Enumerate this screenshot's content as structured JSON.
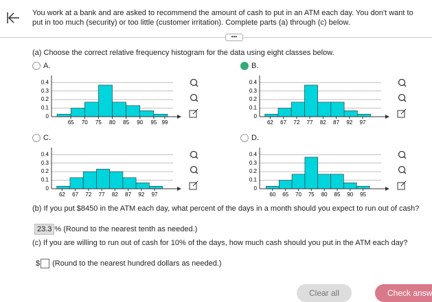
{
  "header": {
    "text": "You work at a bank and are asked to recommend the amount of cash to put in an ATM each day. You don't want to put in too much (security) or too little (customer irritation). Complete parts (a) through (c) below."
  },
  "part_a": {
    "prompt": "(a) Choose the correct relative frequency histogram for the data using eight classes below.",
    "options": [
      {
        "label": "A.",
        "selected": false,
        "chart": {
          "type": "histogram",
          "bins": [
            60,
            65,
            70,
            75,
            80,
            85,
            90,
            95,
            100
          ],
          "values": [
            0.03,
            0.1,
            0.17,
            0.37,
            0.17,
            0.13,
            0.07,
            0.03
          ],
          "xlim": [
            58,
            102
          ],
          "xticks": [
            65,
            70,
            75,
            80,
            85,
            90,
            95,
            99
          ],
          "ylim": [
            0,
            0.45
          ],
          "yticks": [
            0,
            0.1,
            0.2,
            0.3,
            0.4
          ],
          "color": "#00d4dc",
          "grid": true
        }
      },
      {
        "label": "B.",
        "selected": true,
        "chart": {
          "type": "histogram",
          "bins": [
            60,
            65,
            70,
            75,
            80,
            85,
            90,
            95,
            100
          ],
          "values": [
            0.03,
            0.1,
            0.17,
            0.37,
            0.17,
            0.17,
            0.07,
            0.03
          ],
          "xlim": [
            58,
            104
          ],
          "xticks": [
            62,
            67,
            72,
            77,
            82,
            87,
            92,
            97
          ],
          "ylim": [
            0,
            0.45
          ],
          "yticks": [
            0,
            0.1,
            0.2,
            0.3,
            0.4
          ],
          "color": "#00d4dc",
          "grid": true
        }
      },
      {
        "label": "C.",
        "selected": false,
        "chart": {
          "type": "histogram",
          "bins": [
            60,
            65,
            70,
            75,
            80,
            85,
            90,
            95,
            100
          ],
          "values": [
            0.03,
            0.13,
            0.2,
            0.23,
            0.2,
            0.13,
            0.07,
            0.03
          ],
          "xlim": [
            58,
            104
          ],
          "xticks": [
            62,
            67,
            72,
            77,
            82,
            87,
            92,
            97
          ],
          "ylim": [
            0,
            0.45
          ],
          "yticks": [
            0,
            0.1,
            0.2,
            0.3,
            0.4
          ],
          "color": "#00d4dc",
          "grid": true
        }
      },
      {
        "label": "D.",
        "selected": false,
        "chart": {
          "type": "histogram",
          "bins": [
            57.5,
            62.5,
            67.5,
            72.5,
            77.5,
            82.5,
            87.5,
            92.5,
            97.5
          ],
          "values": [
            0.03,
            0.1,
            0.17,
            0.37,
            0.17,
            0.17,
            0.07,
            0.03
          ],
          "xlim": [
            55,
            102
          ],
          "xticks": [
            60,
            65,
            70,
            75,
            80,
            85,
            90,
            95
          ],
          "ylim": [
            0,
            0.45
          ],
          "yticks": [
            0,
            0.1,
            0.2,
            0.3,
            0.4
          ],
          "color": "#00d4dc",
          "grid": true
        }
      }
    ]
  },
  "part_b": {
    "prompt": "(b) If you put $8450 in the ATM each day, what percent of the days in a month should you expect to run out of cash?",
    "answer": 23.3,
    "suffix": "% (Round to the nearest tenth as needed.)"
  },
  "part_c": {
    "prompt": "(c) If you are willing to run out of cash for 10% of the days, how much cash should you put in the ATM each day?",
    "prefix": "$",
    "suffix": "(Round to the nearest hundred dollars as needed.)"
  },
  "buttons": {
    "clear": "Clear all",
    "check": "Check answer"
  }
}
